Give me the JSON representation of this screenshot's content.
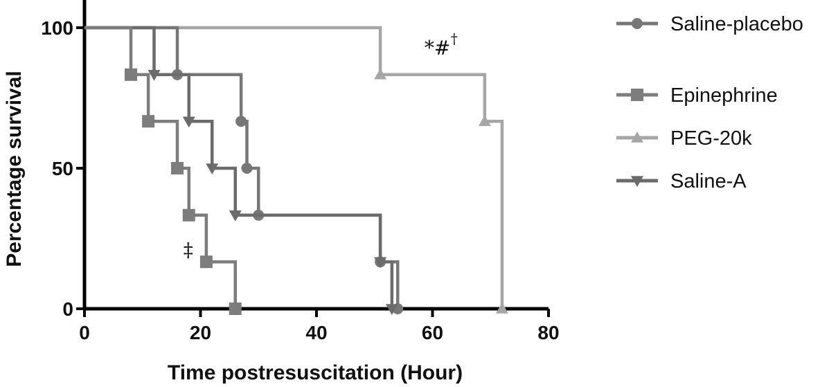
{
  "chart_data": {
    "type": "line",
    "subtype": "kaplan-meier-step",
    "xlabel": "Time postresuscitation (Hour)",
    "ylabel": "Percentage survival",
    "xlim": [
      0,
      80
    ],
    "ylim": [
      0,
      100
    ],
    "xticks": [
      0,
      20,
      40,
      60,
      80
    ],
    "yticks": [
      0,
      50,
      100
    ],
    "grid": false,
    "legend_position": "right",
    "series": [
      {
        "name": "Saline-placebo",
        "marker": "circle",
        "color": "#777777",
        "x": [
          0,
          16,
          27,
          28,
          30,
          51,
          54
        ],
        "y": [
          100,
          83.3,
          66.7,
          50,
          33.3,
          16.7,
          0
        ]
      },
      {
        "name": "Epinephrine",
        "marker": "square",
        "color": "#7d7d7d",
        "x": [
          0,
          8,
          11,
          16,
          18,
          21,
          26
        ],
        "y": [
          100,
          83.3,
          66.7,
          50,
          33.3,
          16.7,
          0
        ]
      },
      {
        "name": "PEG-20k",
        "marker": "triangle-up",
        "color": "#a6a6a6",
        "x": [
          0,
          51,
          69,
          72
        ],
        "y": [
          100,
          83.3,
          66.7,
          0
        ]
      },
      {
        "name": "Saline-A",
        "marker": "triangle-down",
        "color": "#6b6b6b",
        "x": [
          0,
          12,
          18,
          22,
          26,
          51,
          53
        ],
        "y": [
          100,
          83.3,
          66.7,
          50,
          33.3,
          16.7,
          0
        ]
      }
    ],
    "annotations": [
      {
        "text": "*#",
        "superscript": "†",
        "x": 61,
        "y": 93
      },
      {
        "text": "‡",
        "x": 18,
        "y": 21
      }
    ]
  }
}
